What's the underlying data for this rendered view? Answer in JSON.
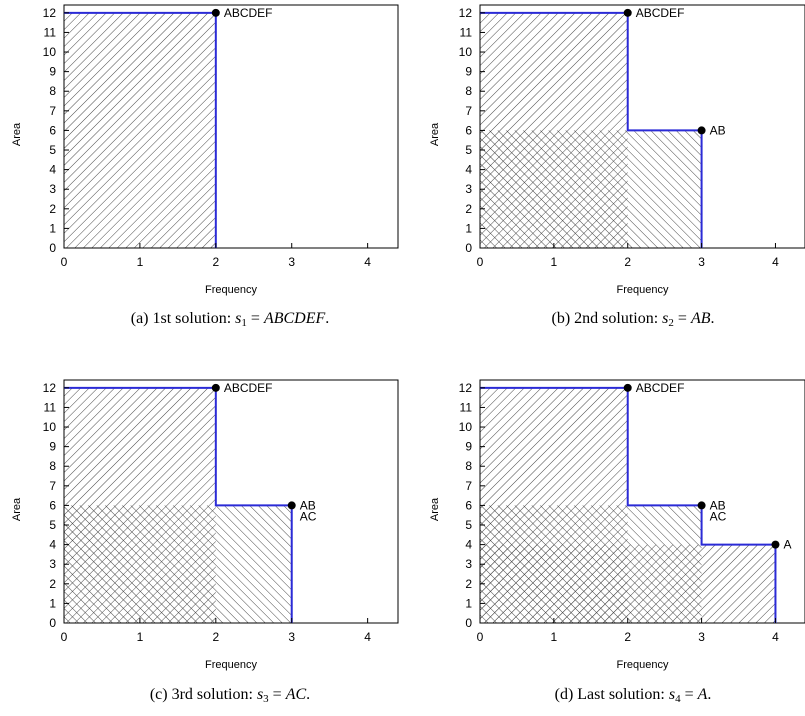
{
  "chart_data": [
    {
      "type": "area",
      "caption": {
        "prefix": "(a) 1st solution: ",
        "var": "s",
        "sub": "1",
        "eq": "=",
        "value": "ABCDEF",
        "suffix": "."
      },
      "xlabel": "Frequency",
      "ylabel": "Area",
      "xlim": [
        0,
        4.4
      ],
      "ylim": [
        0,
        12.4
      ],
      "xticks": [
        "0",
        "1",
        "2",
        "3",
        "4"
      ],
      "yticks": [
        "0",
        "1",
        "2",
        "3",
        "4",
        "5",
        "6",
        "7",
        "8",
        "9",
        "10",
        "11",
        "12"
      ],
      "grid": false,
      "step": [
        [
          0,
          12
        ],
        [
          2,
          12
        ],
        [
          2,
          0
        ]
      ],
      "points": [
        {
          "x": 2,
          "y": 12,
          "labels": [
            "ABCDEF"
          ]
        }
      ],
      "regions": [
        {
          "x": 2,
          "y": 12,
          "hatch": "fwd"
        }
      ]
    },
    {
      "type": "area",
      "caption": {
        "prefix": "(b) 2nd solution: ",
        "var": "s",
        "sub": "2",
        "eq": "=",
        "value": "AB",
        "suffix": "."
      },
      "xlabel": "Frequency",
      "ylabel": "Area",
      "xlim": [
        0,
        4.4
      ],
      "ylim": [
        0,
        12.4
      ],
      "xticks": [
        "0",
        "1",
        "2",
        "3",
        "4"
      ],
      "yticks": [
        "0",
        "1",
        "2",
        "3",
        "4",
        "5",
        "6",
        "7",
        "8",
        "9",
        "10",
        "11",
        "12"
      ],
      "grid": false,
      "step": [
        [
          0,
          12
        ],
        [
          2,
          12
        ],
        [
          2,
          6
        ],
        [
          3,
          6
        ],
        [
          3,
          0
        ]
      ],
      "points": [
        {
          "x": 2,
          "y": 12,
          "labels": [
            "ABCDEF"
          ]
        },
        {
          "x": 3,
          "y": 6,
          "labels": [
            "AB"
          ]
        }
      ],
      "regions": [
        {
          "x": 2,
          "y": 12,
          "hatch": "fwd"
        },
        {
          "x": 3,
          "y": 6,
          "hatch": "back"
        }
      ]
    },
    {
      "type": "area",
      "caption": {
        "prefix": "(c) 3rd solution: ",
        "var": "s",
        "sub": "3",
        "eq": "=",
        "value": "AC",
        "suffix": "."
      },
      "xlabel": "Frequency",
      "ylabel": "Area",
      "xlim": [
        0,
        4.4
      ],
      "ylim": [
        0,
        12.4
      ],
      "xticks": [
        "0",
        "1",
        "2",
        "3",
        "4"
      ],
      "yticks": [
        "0",
        "1",
        "2",
        "3",
        "4",
        "5",
        "6",
        "7",
        "8",
        "9",
        "10",
        "11",
        "12"
      ],
      "grid": false,
      "step": [
        [
          0,
          12
        ],
        [
          2,
          12
        ],
        [
          2,
          6
        ],
        [
          3,
          6
        ],
        [
          3,
          0
        ]
      ],
      "points": [
        {
          "x": 2,
          "y": 12,
          "labels": [
            "ABCDEF"
          ]
        },
        {
          "x": 3,
          "y": 6,
          "labels": [
            "AB",
            "AC"
          ]
        }
      ],
      "regions": [
        {
          "x": 2,
          "y": 12,
          "hatch": "fwd"
        },
        {
          "x": 3,
          "y": 6,
          "hatch": "back"
        }
      ]
    },
    {
      "type": "area",
      "caption": {
        "prefix": "(d) Last solution: ",
        "var": "s",
        "sub": "4",
        "eq": "=",
        "value": "A",
        "suffix": "."
      },
      "xlabel": "Frequency",
      "ylabel": "Area",
      "xlim": [
        0,
        4.4
      ],
      "ylim": [
        0,
        12.4
      ],
      "xticks": [
        "0",
        "1",
        "2",
        "3",
        "4"
      ],
      "yticks": [
        "0",
        "1",
        "2",
        "3",
        "4",
        "5",
        "6",
        "7",
        "8",
        "9",
        "10",
        "11",
        "12"
      ],
      "grid": false,
      "step": [
        [
          0,
          12
        ],
        [
          2,
          12
        ],
        [
          2,
          6
        ],
        [
          3,
          6
        ],
        [
          3,
          4
        ],
        [
          4,
          4
        ],
        [
          4,
          0
        ]
      ],
      "points": [
        {
          "x": 2,
          "y": 12,
          "labels": [
            "ABCDEF"
          ]
        },
        {
          "x": 3,
          "y": 6,
          "labels": [
            "AB",
            "AC"
          ]
        },
        {
          "x": 4,
          "y": 4,
          "labels": [
            "A"
          ]
        }
      ],
      "regions": [
        {
          "x": 2,
          "y": 12,
          "hatch": "fwd"
        },
        {
          "x": 3,
          "y": 6,
          "hatch": "back"
        },
        {
          "x": 4,
          "y": 4,
          "hatch": "fwd"
        }
      ]
    }
  ],
  "style": {
    "step_color": "#2b2bd6",
    "hatch_color": "#4a4a4a",
    "axis_color": "#000000",
    "point_color": "#000000"
  }
}
